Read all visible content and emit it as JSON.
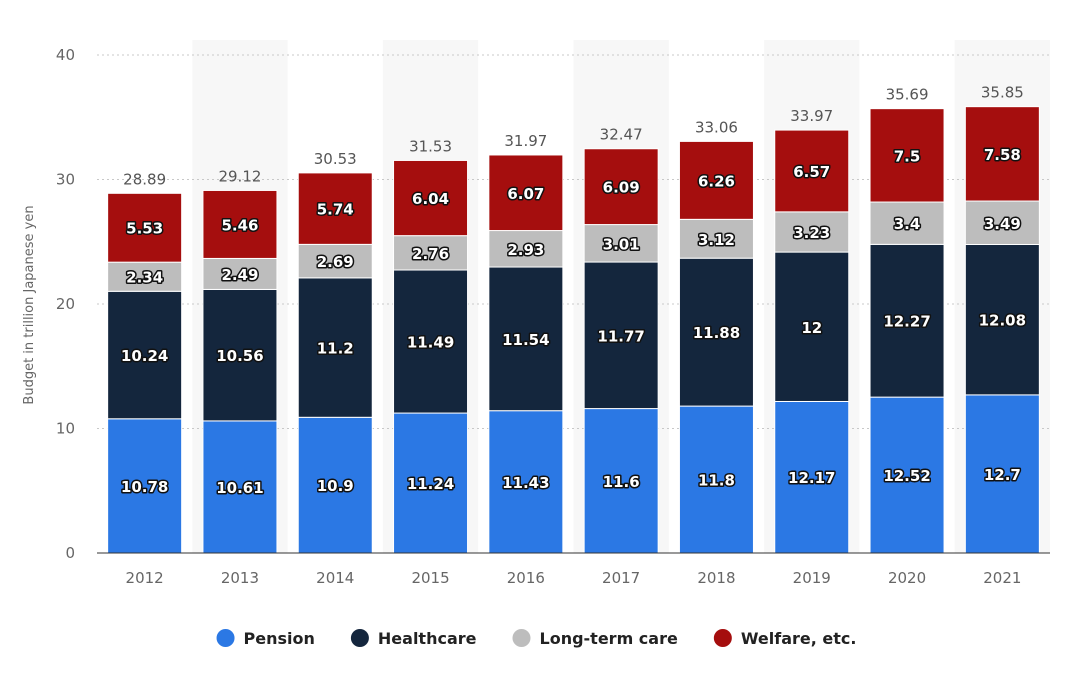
{
  "chart_data": {
    "type": "bar",
    "stacked": true,
    "title": "",
    "xlabel": "",
    "ylabel": "Budget in trillion Japanese yen",
    "ylim": [
      0,
      40
    ],
    "yticks": [
      0,
      10,
      20,
      30,
      40
    ],
    "categories": [
      "2012",
      "2013",
      "2014",
      "2015",
      "2016",
      "2017",
      "2018",
      "2019",
      "2020",
      "2021"
    ],
    "series": [
      {
        "name": "Pension",
        "color": "#2b78e4",
        "values": [
          10.78,
          10.61,
          10.9,
          11.24,
          11.43,
          11.6,
          11.8,
          12.17,
          12.52,
          12.7
        ]
      },
      {
        "name": "Healthcare",
        "color": "#14263d",
        "values": [
          10.24,
          10.56,
          11.2,
          11.49,
          11.54,
          11.77,
          11.88,
          12,
          12.27,
          12.08
        ]
      },
      {
        "name": "Long-term care",
        "color": "#bdbdbd",
        "values": [
          2.34,
          2.49,
          2.69,
          2.76,
          2.93,
          3.01,
          3.12,
          3.23,
          3.4,
          3.49
        ]
      },
      {
        "name": "Welfare, etc.",
        "color": "#a50e0e",
        "values": [
          5.53,
          5.46,
          5.74,
          6.04,
          6.07,
          6.09,
          6.26,
          6.57,
          7.5,
          7.58
        ]
      }
    ],
    "totals": [
      28.89,
      29.12,
      30.53,
      31.53,
      31.97,
      32.47,
      33.06,
      33.97,
      35.69,
      35.85
    ],
    "legend_position": "bottom",
    "grid": true
  }
}
